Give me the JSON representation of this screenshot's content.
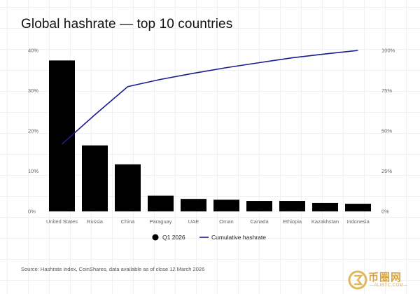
{
  "chart_data": {
    "type": "bar",
    "title": "Global hashrate — top 10 countries",
    "categories": [
      "United States",
      "Russia",
      "China",
      "Paraguay",
      "UAE",
      "Oman",
      "Canada",
      "Ethiopia",
      "Kazakhstan",
      "Indonesia"
    ],
    "series": [
      {
        "name": "Q1 2026",
        "type": "bar",
        "axis": "left",
        "color": "#000000",
        "values": [
          37.5,
          16.4,
          11.7,
          3.9,
          3.1,
          2.9,
          2.6,
          2.6,
          2.1,
          1.9
        ]
      },
      {
        "name": "Cumulative hashrate",
        "type": "line",
        "axis": "right",
        "color": "#1a1a8c",
        "values": [
          41.8,
          60.0,
          77.5,
          82.0,
          85.8,
          89.3,
          92.4,
          95.4,
          97.8,
          100
        ]
      }
    ],
    "y_left": {
      "ylim": [
        0,
        40
      ],
      "ticks": [
        "0%",
        "10%",
        "20%",
        "30%",
        "40%"
      ]
    },
    "y_right": {
      "ylim": [
        0,
        100
      ],
      "ticks": [
        "0%",
        "25%",
        "50%",
        "75%",
        "100%"
      ]
    },
    "legend": {
      "placement": "bottom-center",
      "labels": [
        "Q1 2026",
        "Cumulative hashrate"
      ]
    },
    "grid": false
  },
  "source": "Source: Hashrate index, CoinShares, data available as of close 12 March 2026",
  "watermark": {
    "brand": "币圈网",
    "sub": "—ALIBTC.COM—"
  }
}
